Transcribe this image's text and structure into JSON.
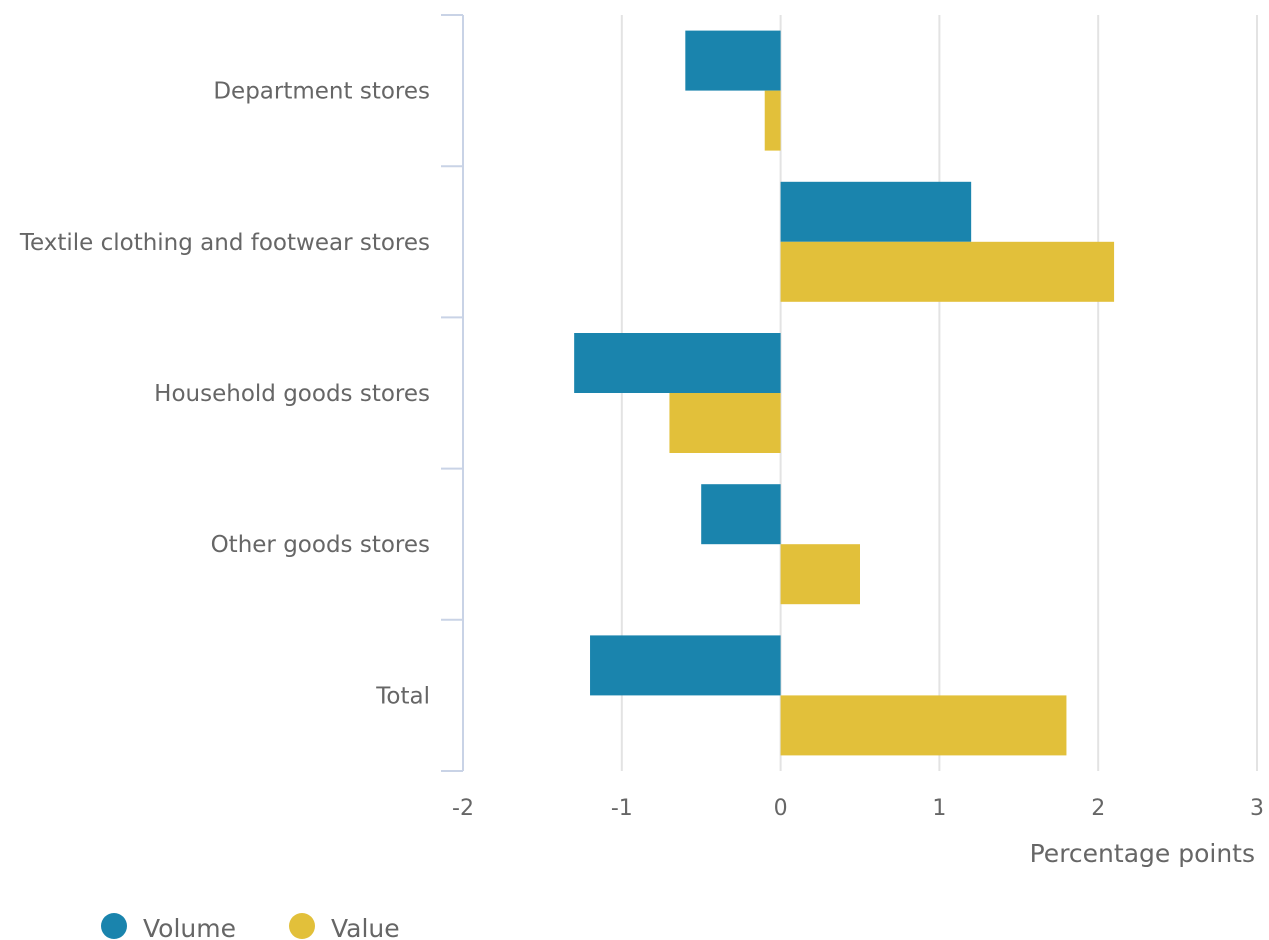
{
  "chart_data": {
    "type": "bar",
    "orientation": "horizontal",
    "categories": [
      "Department stores",
      "Textile clothing and footwear stores",
      "Household goods stores",
      "Other goods stores",
      "Total"
    ],
    "series": [
      {
        "name": "Volume",
        "color": "#1a84ad",
        "values": [
          -0.6,
          1.2,
          -1.3,
          -0.5,
          -1.2
        ]
      },
      {
        "name": "Value",
        "color": "#e2c03a",
        "values": [
          -0.1,
          2.1,
          -0.7,
          0.5,
          1.8
        ]
      }
    ],
    "xlim": [
      -2,
      3
    ],
    "x_ticks": [
      "-2",
      "-1",
      "0",
      "1",
      "2",
      "3"
    ],
    "xlabel": "Percentage points",
    "ylabel": "",
    "grid": "vertical",
    "legend_position": "bottom-left"
  }
}
